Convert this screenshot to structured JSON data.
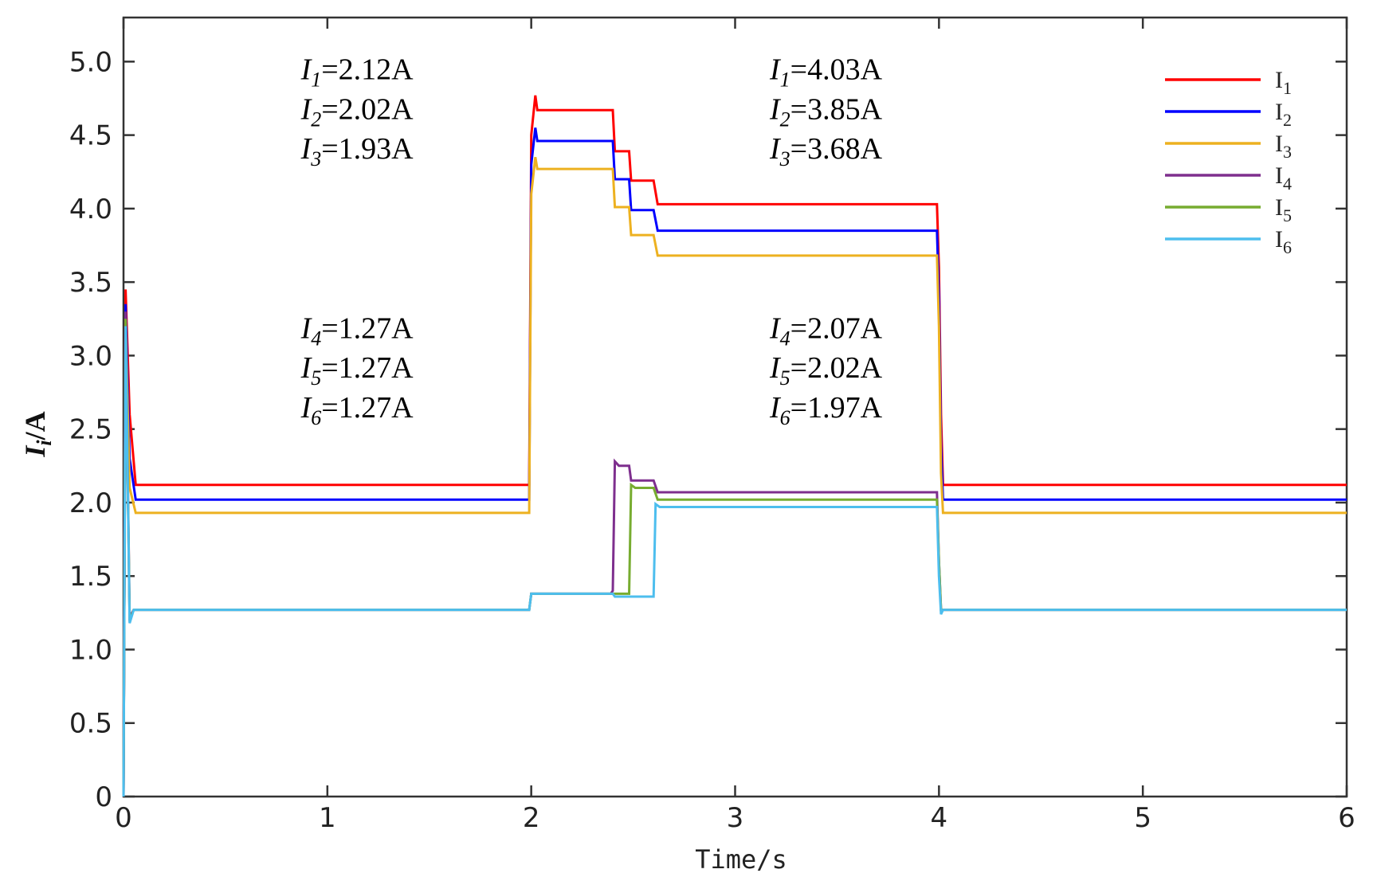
{
  "chart_data": {
    "type": "line",
    "title": "",
    "xlabel": "Time/s",
    "ylabel": "I_i/A",
    "ylabel_parts": {
      "main": "I",
      "sub": "i",
      "rest": "/A"
    },
    "xlim": [
      0,
      6
    ],
    "ylim": [
      0,
      5.3
    ],
    "xticks": [
      0,
      1,
      2,
      3,
      4,
      5,
      6
    ],
    "xtick_labels": [
      "0",
      "1",
      "2",
      "3",
      "4",
      "5",
      "6"
    ],
    "yticks": [
      0,
      0.5,
      1.0,
      1.5,
      2.0,
      2.5,
      3.0,
      3.5,
      4.0,
      4.5,
      5.0
    ],
    "ytick_labels": [
      "0",
      "0.5",
      "1.0",
      "1.5",
      "2.0",
      "2.5",
      "3.0",
      "3.5",
      "4.0",
      "4.5",
      "5.0"
    ],
    "grid": false,
    "legend_position": "top-right",
    "series": [
      {
        "name": "I1",
        "label_main": "I",
        "label_sub": "1",
        "color": "#ff0000",
        "points": [
          [
            0,
            0
          ],
          [
            0.01,
            3.45
          ],
          [
            0.03,
            2.6
          ],
          [
            0.06,
            2.12
          ],
          [
            1.99,
            2.12
          ],
          [
            2.0,
            4.5
          ],
          [
            2.02,
            4.77
          ],
          [
            2.03,
            4.67
          ],
          [
            2.4,
            4.67
          ],
          [
            2.41,
            4.39
          ],
          [
            2.48,
            4.39
          ],
          [
            2.49,
            4.19
          ],
          [
            2.6,
            4.19
          ],
          [
            2.62,
            4.03
          ],
          [
            3.99,
            4.03
          ],
          [
            4.0,
            3.6
          ],
          [
            4.01,
            2.6
          ],
          [
            4.02,
            2.12
          ],
          [
            6.0,
            2.12
          ]
        ]
      },
      {
        "name": "I2",
        "label_main": "I",
        "label_sub": "2",
        "color": "#0000ff",
        "points": [
          [
            0,
            0
          ],
          [
            0.01,
            3.35
          ],
          [
            0.03,
            2.3
          ],
          [
            0.06,
            2.02
          ],
          [
            1.99,
            2.02
          ],
          [
            2.0,
            4.3
          ],
          [
            2.02,
            4.55
          ],
          [
            2.03,
            4.46
          ],
          [
            2.4,
            4.46
          ],
          [
            2.41,
            4.2
          ],
          [
            2.48,
            4.2
          ],
          [
            2.49,
            3.99
          ],
          [
            2.6,
            3.99
          ],
          [
            2.62,
            3.85
          ],
          [
            3.99,
            3.85
          ],
          [
            4.0,
            3.4
          ],
          [
            4.01,
            2.4
          ],
          [
            4.02,
            2.02
          ],
          [
            6.0,
            2.02
          ]
        ]
      },
      {
        "name": "I3",
        "label_main": "I",
        "label_sub": "3",
        "color": "#edb120",
        "points": [
          [
            0,
            0
          ],
          [
            0.01,
            3.25
          ],
          [
            0.03,
            2.1
          ],
          [
            0.06,
            1.93
          ],
          [
            1.99,
            1.93
          ],
          [
            2.0,
            4.1
          ],
          [
            2.02,
            4.35
          ],
          [
            2.03,
            4.27
          ],
          [
            2.4,
            4.27
          ],
          [
            2.41,
            4.01
          ],
          [
            2.48,
            4.01
          ],
          [
            2.49,
            3.82
          ],
          [
            2.6,
            3.82
          ],
          [
            2.62,
            3.68
          ],
          [
            3.99,
            3.68
          ],
          [
            4.0,
            3.2
          ],
          [
            4.01,
            2.2
          ],
          [
            4.02,
            1.93
          ],
          [
            6.0,
            1.93
          ]
        ]
      },
      {
        "name": "I4",
        "label_main": "I",
        "label_sub": "4",
        "color": "#7e2f8e",
        "points": [
          [
            0,
            0
          ],
          [
            0.01,
            3.3
          ],
          [
            0.03,
            1.22
          ],
          [
            0.05,
            1.27
          ],
          [
            1.99,
            1.27
          ],
          [
            2.0,
            1.38
          ],
          [
            2.39,
            1.38
          ],
          [
            2.4,
            1.4
          ],
          [
            2.41,
            2.28
          ],
          [
            2.43,
            2.25
          ],
          [
            2.48,
            2.25
          ],
          [
            2.49,
            2.15
          ],
          [
            2.6,
            2.15
          ],
          [
            2.62,
            2.07
          ],
          [
            3.99,
            2.07
          ],
          [
            4.0,
            1.6
          ],
          [
            4.01,
            1.27
          ],
          [
            6.0,
            1.27
          ]
        ]
      },
      {
        "name": "I5",
        "label_main": "I",
        "label_sub": "5",
        "color": "#77ac30",
        "points": [
          [
            0,
            0
          ],
          [
            0.01,
            3.25
          ],
          [
            0.03,
            1.2
          ],
          [
            0.05,
            1.27
          ],
          [
            1.99,
            1.27
          ],
          [
            2.0,
            1.38
          ],
          [
            2.48,
            1.38
          ],
          [
            2.49,
            2.12
          ],
          [
            2.51,
            2.1
          ],
          [
            2.6,
            2.1
          ],
          [
            2.62,
            2.02
          ],
          [
            3.99,
            2.02
          ],
          [
            4.0,
            1.6
          ],
          [
            4.01,
            1.27
          ],
          [
            6.0,
            1.27
          ]
        ]
      },
      {
        "name": "I6",
        "label_main": "I",
        "label_sub": "6",
        "color": "#4dbeee",
        "points": [
          [
            0,
            0
          ],
          [
            0.01,
            3.2
          ],
          [
            0.03,
            1.18
          ],
          [
            0.05,
            1.27
          ],
          [
            1.99,
            1.27
          ],
          [
            2.0,
            1.38
          ],
          [
            2.4,
            1.38
          ],
          [
            2.41,
            1.36
          ],
          [
            2.6,
            1.36
          ],
          [
            2.61,
            1.99
          ],
          [
            2.63,
            1.97
          ],
          [
            3.99,
            1.97
          ],
          [
            4.0,
            1.5
          ],
          [
            4.01,
            1.24
          ],
          [
            4.02,
            1.27
          ],
          [
            6.0,
            1.27
          ]
        ]
      }
    ],
    "annotations": [
      {
        "main": "I",
        "sub": "1",
        "value": "=2.12A",
        "x": 0.87,
        "y": 4.88
      },
      {
        "main": "I",
        "sub": "2",
        "value": "=2.02A",
        "x": 0.87,
        "y": 4.61
      },
      {
        "main": "I",
        "sub": "3",
        "value": "=1.93A",
        "x": 0.87,
        "y": 4.34
      },
      {
        "main": "I",
        "sub": "4",
        "value": "=1.27A",
        "x": 0.87,
        "y": 3.12
      },
      {
        "main": "I",
        "sub": "5",
        "value": "=1.27A",
        "x": 0.87,
        "y": 2.85
      },
      {
        "main": "I",
        "sub": "6",
        "value": "=1.27A",
        "x": 0.87,
        "y": 2.58
      },
      {
        "main": "I",
        "sub": "1",
        "value": "=4.03A",
        "x": 3.17,
        "y": 4.88
      },
      {
        "main": "I",
        "sub": "2",
        "value": "=3.85A",
        "x": 3.17,
        "y": 4.61
      },
      {
        "main": "I",
        "sub": "3",
        "value": "=3.68A",
        "x": 3.17,
        "y": 4.34
      },
      {
        "main": "I",
        "sub": "4",
        "value": "=2.07A",
        "x": 3.17,
        "y": 3.12
      },
      {
        "main": "I",
        "sub": "5",
        "value": "=2.02A",
        "x": 3.17,
        "y": 2.85
      },
      {
        "main": "I",
        "sub": "6",
        "value": "=1.97A",
        "x": 3.17,
        "y": 2.58
      }
    ]
  }
}
